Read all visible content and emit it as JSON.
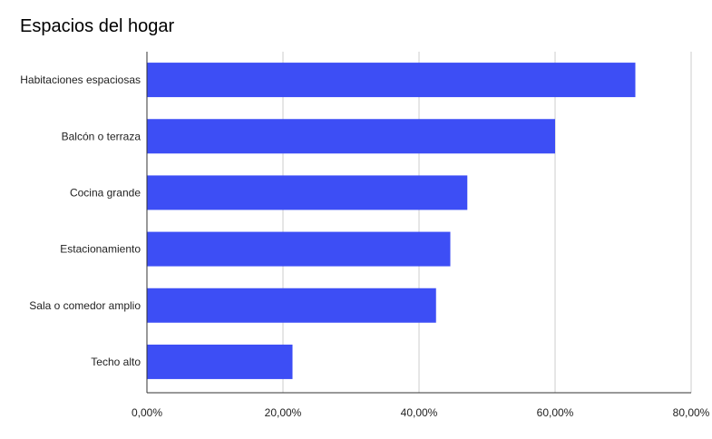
{
  "chart_data": {
    "type": "bar",
    "orientation": "horizontal",
    "title": "Espacios del hogar",
    "xlabel": "",
    "ylabel": "",
    "categories": [
      "Habitaciones espaciosas",
      "Balcón o terraza",
      "Cocina grande",
      "Estacionamiento",
      "Sala o comedor amplio",
      "Techo alto"
    ],
    "values": [
      71.8,
      60.0,
      47.1,
      44.6,
      42.5,
      21.4
    ],
    "xlim": [
      0,
      80
    ],
    "x_ticks": [
      0,
      20,
      40,
      60,
      80
    ],
    "x_tick_labels": [
      "0,00%",
      "20,00%",
      "40,00%",
      "60,00%",
      "80,00%"
    ],
    "grid": "vertical",
    "legend": "none",
    "bar_color": "#3d4ef5",
    "grid_color": "#cccccc",
    "axis_color": "#333333"
  }
}
